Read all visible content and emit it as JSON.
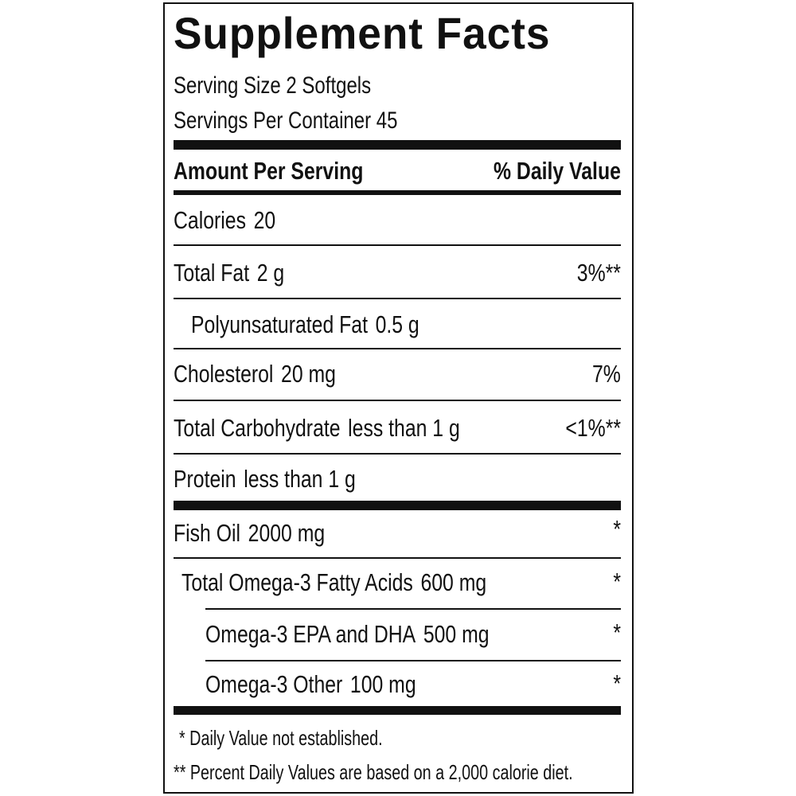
{
  "title": "Supplement Facts",
  "serving_size": "Serving Size 2 Softgels",
  "servings_per_container": "Servings Per Container 45",
  "header": {
    "amount": "Amount Per Serving",
    "daily_value": "% Daily Value"
  },
  "rows": [
    {
      "label": "Calories",
      "amount": "20"
    },
    {
      "label": "Total Fat",
      "amount": "2 g",
      "daily_value": "3%**"
    },
    {
      "label": "Polyunsaturated Fat",
      "amount": "0.5 g"
    },
    {
      "label": "Cholesterol",
      "amount": "20 mg",
      "daily_value": "7%"
    },
    {
      "label": "Total Carbohydrate",
      "amount": "less than 1 g",
      "daily_value": "<1%**"
    },
    {
      "label": "Protein",
      "amount": "less than 1 g"
    },
    {
      "label": "Fish Oil",
      "amount": "2000 mg",
      "daily_value": "*"
    },
    {
      "label": "Total Omega-3 Fatty Acids",
      "amount": "600 mg",
      "daily_value": "*"
    },
    {
      "label": "Omega-3 EPA and DHA",
      "amount": "500 mg",
      "daily_value": "*"
    },
    {
      "label": "Omega-3 Other",
      "amount": "100 mg",
      "daily_value": "*"
    }
  ],
  "footnotes": [
    "* Daily Value not established.",
    "** Percent Daily Values are based on a 2,000 calorie diet."
  ]
}
